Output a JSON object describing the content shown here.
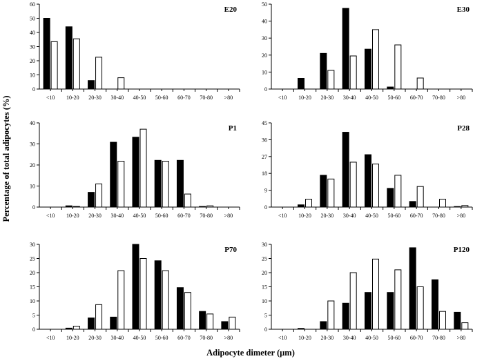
{
  "figure": {
    "ylabel": "Percentage of total adipocytes (%)",
    "xlabel": "Adipocyte dimeter (µm)"
  },
  "chart_data": [
    {
      "type": "bar",
      "title": "E20",
      "categories": [
        "<10",
        "10-20",
        "20-30",
        "30-40",
        "40-50",
        "50-60",
        "60-70",
        "70-80",
        ">80"
      ],
      "yticks": [
        0,
        10,
        20,
        30,
        40,
        50,
        60
      ],
      "ylim": [
        0,
        60
      ],
      "series": [
        {
          "name": "filled",
          "values": [
            50,
            44,
            6,
            0,
            0,
            0,
            0,
            0,
            0
          ]
        },
        {
          "name": "open",
          "values": [
            33.5,
            35.5,
            22.5,
            8,
            0,
            0,
            0,
            0,
            0
          ]
        }
      ]
    },
    {
      "type": "bar",
      "title": "E30",
      "categories": [
        "<10",
        "10-20",
        "20-30",
        "30-40",
        "40-50",
        "50-60",
        "60-70",
        "70-80",
        ">80"
      ],
      "yticks": [
        0,
        10,
        20,
        30,
        40,
        50
      ],
      "ylim": [
        0,
        50
      ],
      "series": [
        {
          "name": "filled",
          "values": [
            0,
            6.3,
            21,
            47.5,
            23.5,
            1.2,
            0,
            0,
            0
          ]
        },
        {
          "name": "open",
          "values": [
            0,
            0,
            11,
            19.5,
            35,
            26,
            6.5,
            0,
            0
          ]
        }
      ]
    },
    {
      "type": "bar",
      "title": "P1",
      "categories": [
        "<10",
        "10-20",
        "20-30",
        "30-40",
        "40-50",
        "50-60",
        "60-70",
        "70-80",
        ">80"
      ],
      "yticks": [
        0,
        10,
        20,
        30,
        40
      ],
      "ylim": [
        0,
        40
      ],
      "series": [
        {
          "name": "filled",
          "values": [
            0,
            0.6,
            7,
            30.8,
            33.2,
            22.2,
            22.2,
            0.3,
            0
          ]
        },
        {
          "name": "open",
          "values": [
            0,
            0.3,
            11,
            21.8,
            37,
            21.8,
            6.2,
            0.6,
            0
          ]
        }
      ]
    },
    {
      "type": "bar",
      "title": "P28",
      "categories": [
        "<10",
        "10-20",
        "20-30",
        "30-40",
        "40-50",
        "50-60",
        "60-70",
        "70-80",
        ">80"
      ],
      "yticks": [
        0,
        9,
        18,
        27,
        36,
        45
      ],
      "ylim": [
        0,
        45
      ],
      "series": [
        {
          "name": "filled",
          "values": [
            0,
            1.2,
            17,
            40,
            28,
            10,
            3,
            0,
            0.3
          ]
        },
        {
          "name": "open",
          "values": [
            0,
            4.2,
            15,
            24,
            23,
            17,
            11,
            4.2,
            0.8
          ]
        }
      ]
    },
    {
      "type": "bar",
      "title": "P70",
      "categories": [
        "<10",
        "10-20",
        "20-30",
        "30-40",
        "40-50",
        "50-60",
        "60-70",
        "70-80",
        ">80"
      ],
      "yticks": [
        0,
        5,
        10,
        15,
        20,
        25,
        30
      ],
      "ylim": [
        0,
        30
      ],
      "series": [
        {
          "name": "filled",
          "values": [
            0,
            0.4,
            4,
            4.3,
            30,
            24.2,
            14.7,
            6.3,
            2.7
          ]
        },
        {
          "name": "open",
          "values": [
            0,
            1.1,
            8.7,
            20.7,
            25,
            20.7,
            13,
            5.4,
            4.3
          ]
        }
      ]
    },
    {
      "type": "bar",
      "title": "P120",
      "categories": [
        "<10",
        "10-20",
        "20-30",
        "30-40",
        "40-50",
        "50-60",
        "60-70",
        "70-80",
        ">80"
      ],
      "yticks": [
        0,
        5,
        10,
        15,
        20,
        25,
        30
      ],
      "ylim": [
        0,
        30
      ],
      "series": [
        {
          "name": "filled",
          "values": [
            0,
            0.3,
            2.7,
            9.2,
            13,
            13,
            28.8,
            17.5,
            6
          ]
        },
        {
          "name": "open",
          "values": [
            0,
            0,
            10,
            20,
            24.8,
            21,
            15,
            6.3,
            2.3
          ]
        }
      ]
    }
  ]
}
